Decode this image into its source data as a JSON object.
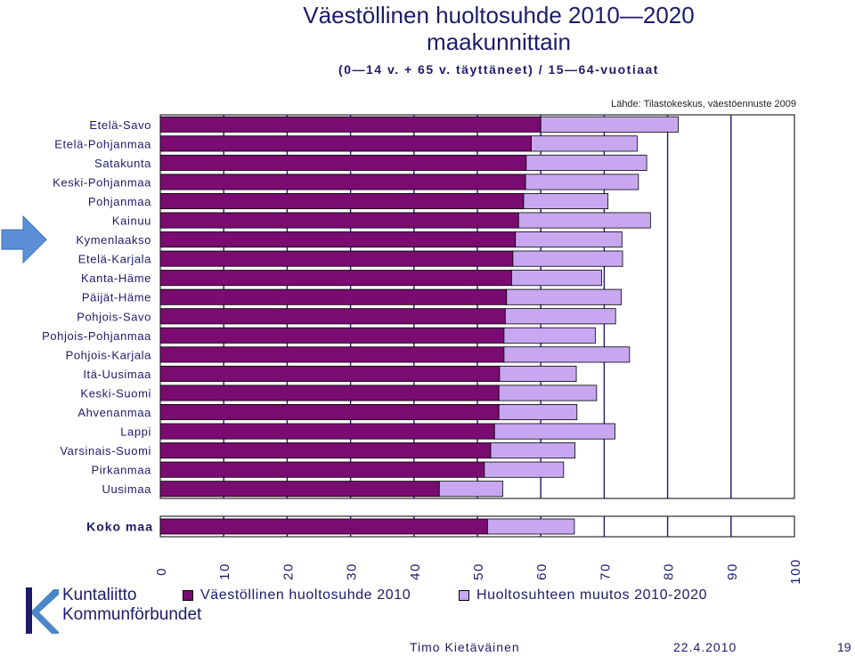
{
  "header": {
    "title_line1": "Väestöllinen huoltosuhde 2010—2020",
    "title_line2": "maakunnittain",
    "subtitle": "(0—14 v. + 65 v. täyttäneet) / 15—64-vuotiaat",
    "source": "Lähde: Tilastokeskus, väestöennuste 2009"
  },
  "legend": {
    "item1": "Väestöllinen huoltosuhde 2010",
    "item2": "Huoltosuhteen muutos 2010-2020"
  },
  "logo": {
    "line1": "Kuntaliitto",
    "line2": "Kommunförbundet"
  },
  "footer": {
    "author": "Timo Kietäväinen",
    "date": "22.4.2010",
    "page": "19"
  },
  "colors": {
    "base": "#7a0b70",
    "change": "#c7a8f0",
    "gridline": "#1f1a6b",
    "arrow": "#5b8fd6"
  },
  "chart_data": {
    "type": "bar",
    "orientation": "horizontal",
    "stacked": true,
    "categories": [
      "Etelä-Savo",
      "Etelä-Pohjanmaa",
      "Satakunta",
      "Keski-Pohjanmaa",
      "Pohjanmaa",
      "Kainuu",
      "Kymenlaakso",
      "Etelä-Karjala",
      "Kanta-Häme",
      "Päijät-Häme",
      "Pohjois-Savo",
      "Pohjois-Pohjanmaa",
      "Pohjois-Karjala",
      "Itä-Uusimaa",
      "Keski-Suomi",
      "Ahvenanmaa",
      "Lappi",
      "Varsinais-Suomi",
      "Pirkanmaa",
      "Uusimaa"
    ],
    "total_label": "Koko maa",
    "series": [
      {
        "name": "Väestöllinen huoltosuhde 2010",
        "values": [
          60.0,
          58.5,
          57.7,
          57.6,
          57.3,
          56.5,
          56.0,
          55.6,
          55.4,
          54.6,
          54.4,
          54.2,
          54.2,
          53.5,
          53.4,
          53.4,
          52.7,
          52.1,
          51.1,
          44.0
        ],
        "total": 51.6
      },
      {
        "name": "Huoltosuhteen muutos 2010-2020",
        "values": [
          21.7,
          16.7,
          19.0,
          17.8,
          13.3,
          20.8,
          16.8,
          17.3,
          14.2,
          18.1,
          17.4,
          14.4,
          19.8,
          12.1,
          15.4,
          12.3,
          19.0,
          13.3,
          12.5,
          10.0
        ],
        "total": 13.7
      }
    ],
    "highlighted_category": "Kymenlaakso",
    "xlim": [
      0,
      100
    ],
    "xticks": [
      0,
      10,
      20,
      30,
      40,
      50,
      60,
      70,
      80,
      90,
      100
    ]
  }
}
